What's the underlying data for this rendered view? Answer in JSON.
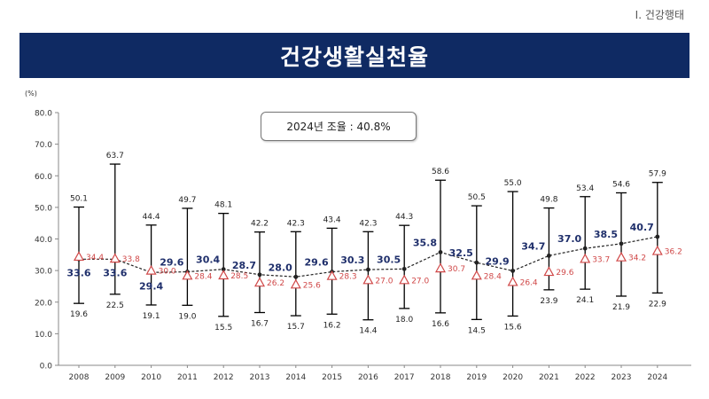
{
  "section_label": "Ⅰ. 건강행태",
  "title": "건강생활실천율",
  "callout": "2024년 조율 : 40.8%",
  "colors": {
    "title_bg": "#0f2a63",
    "national": "#1f2f6b",
    "regional": "#d04848",
    "whisker": "#000000"
  },
  "chart_data": {
    "type": "line",
    "unit_label": "(%)",
    "ylim": [
      0,
      80
    ],
    "yticks": [
      "0.0",
      "10.0",
      "20.0",
      "30.0",
      "40.0",
      "50.0",
      "60.0",
      "70.0",
      "80.0"
    ],
    "categories": [
      "2008",
      "2009",
      "2010",
      "2011",
      "2012",
      "2013",
      "2014",
      "2015",
      "2016",
      "2017",
      "2018",
      "2019",
      "2020",
      "2021",
      "2022",
      "2023",
      "2024"
    ],
    "series": [
      {
        "values": [
          33.6,
          33.6,
          29.4,
          29.6,
          30.4,
          28.7,
          28.0,
          29.6,
          30.3,
          30.5,
          35.8,
          32.5,
          29.9,
          34.7,
          37.0,
          38.5,
          40.7
        ]
      },
      {
        "values": [
          34.4,
          33.8,
          30.0,
          28.4,
          28.5,
          26.2,
          25.6,
          28.3,
          27.0,
          27.0,
          30.7,
          28.4,
          26.4,
          29.6,
          33.7,
          34.2,
          36.2
        ]
      }
    ],
    "max": [
      50.1,
      63.7,
      44.4,
      49.7,
      48.1,
      42.2,
      42.3,
      43.4,
      42.3,
      44.3,
      58.6,
      50.5,
      55.0,
      49.8,
      53.4,
      54.6,
      57.9
    ],
    "min": [
      19.6,
      22.5,
      19.1,
      19.0,
      15.5,
      16.7,
      15.7,
      16.2,
      14.4,
      18.0,
      16.6,
      14.5,
      15.6,
      23.9,
      24.1,
      21.9,
      22.9
    ],
    "grid": false
  }
}
